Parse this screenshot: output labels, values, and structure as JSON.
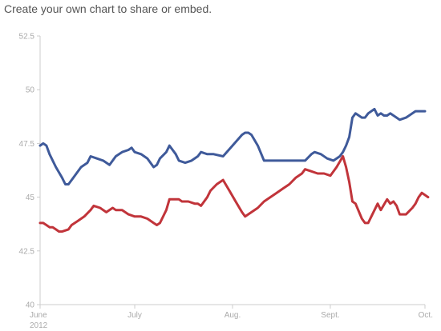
{
  "page": {
    "heading": "Create your own chart to share or embed."
  },
  "colors": {
    "series_1": "#3f5a9a",
    "series_2": "#c1343a",
    "axis": "#cccccc",
    "tick_text": "#aaaaaa"
  },
  "chart_data": {
    "type": "line",
    "title": "",
    "xlabel": "",
    "ylabel": "",
    "ylim": [
      40,
      52.5
    ],
    "xlim": [
      "2012-06-01",
      "2012-10-01"
    ],
    "yticks": [
      "52.5",
      "50",
      "47.5",
      "45",
      "42.5",
      "40"
    ],
    "xticks": [
      {
        "date": "2012-06-01",
        "label": "June",
        "sublabel": "2012"
      },
      {
        "date": "2012-07-01",
        "label": "July",
        "sublabel": ""
      },
      {
        "date": "2012-08-01",
        "label": "Aug.",
        "sublabel": ""
      },
      {
        "date": "2012-09-01",
        "label": "Sept.",
        "sublabel": ""
      },
      {
        "date": "2012-10-01",
        "label": "Oct.",
        "sublabel": ""
      }
    ],
    "grid": false,
    "legend": "none",
    "series": [
      {
        "color": "#3f5a9a",
        "points": [
          [
            "2012-06-01",
            47.4
          ],
          [
            "2012-06-02",
            47.5
          ],
          [
            "2012-06-03",
            47.4
          ],
          [
            "2012-06-04",
            47.0
          ],
          [
            "2012-06-06",
            46.4
          ],
          [
            "2012-06-08",
            45.9
          ],
          [
            "2012-06-09",
            45.6
          ],
          [
            "2012-06-10",
            45.6
          ],
          [
            "2012-06-12",
            46.0
          ],
          [
            "2012-06-14",
            46.4
          ],
          [
            "2012-06-16",
            46.6
          ],
          [
            "2012-06-17",
            46.9
          ],
          [
            "2012-06-19",
            46.8
          ],
          [
            "2012-06-21",
            46.7
          ],
          [
            "2012-06-23",
            46.5
          ],
          [
            "2012-06-25",
            46.9
          ],
          [
            "2012-06-27",
            47.1
          ],
          [
            "2012-06-29",
            47.2
          ],
          [
            "2012-06-30",
            47.3
          ],
          [
            "2012-07-01",
            47.1
          ],
          [
            "2012-07-03",
            47.0
          ],
          [
            "2012-07-05",
            46.8
          ],
          [
            "2012-07-07",
            46.4
          ],
          [
            "2012-07-08",
            46.5
          ],
          [
            "2012-07-09",
            46.8
          ],
          [
            "2012-07-11",
            47.1
          ],
          [
            "2012-07-12",
            47.4
          ],
          [
            "2012-07-14",
            47.0
          ],
          [
            "2012-07-15",
            46.7
          ],
          [
            "2012-07-17",
            46.6
          ],
          [
            "2012-07-19",
            46.7
          ],
          [
            "2012-07-21",
            46.9
          ],
          [
            "2012-07-22",
            47.1
          ],
          [
            "2012-07-24",
            47.0
          ],
          [
            "2012-07-26",
            47.0
          ],
          [
            "2012-07-29",
            46.9
          ],
          [
            "2012-08-01",
            47.4
          ],
          [
            "2012-08-04",
            47.9
          ],
          [
            "2012-08-05",
            48.0
          ],
          [
            "2012-08-06",
            48.0
          ],
          [
            "2012-08-07",
            47.9
          ],
          [
            "2012-08-09",
            47.4
          ],
          [
            "2012-08-11",
            46.7
          ],
          [
            "2012-08-15",
            46.7
          ],
          [
            "2012-08-20",
            46.7
          ],
          [
            "2012-08-24",
            46.7
          ],
          [
            "2012-08-26",
            47.0
          ],
          [
            "2012-08-27",
            47.1
          ],
          [
            "2012-08-29",
            47.0
          ],
          [
            "2012-08-31",
            46.8
          ],
          [
            "2012-09-02",
            46.7
          ],
          [
            "2012-09-04",
            46.9
          ],
          [
            "2012-09-05",
            47.1
          ],
          [
            "2012-09-06",
            47.4
          ],
          [
            "2012-09-07",
            47.8
          ],
          [
            "2012-09-08",
            48.7
          ],
          [
            "2012-09-09",
            48.9
          ],
          [
            "2012-09-11",
            48.7
          ],
          [
            "2012-09-12",
            48.7
          ],
          [
            "2012-09-13",
            48.9
          ],
          [
            "2012-09-15",
            49.1
          ],
          [
            "2012-09-16",
            48.8
          ],
          [
            "2012-09-17",
            48.9
          ],
          [
            "2012-09-18",
            48.8
          ],
          [
            "2012-09-19",
            48.8
          ],
          [
            "2012-09-20",
            48.9
          ],
          [
            "2012-09-22",
            48.7
          ],
          [
            "2012-09-23",
            48.6
          ],
          [
            "2012-09-25",
            48.7
          ],
          [
            "2012-09-27",
            48.9
          ],
          [
            "2012-09-28",
            49.0
          ],
          [
            "2012-10-01",
            49.0
          ]
        ]
      },
      {
        "color": "#c1343a",
        "points": [
          [
            "2012-06-01",
            43.8
          ],
          [
            "2012-06-02",
            43.8
          ],
          [
            "2012-06-03",
            43.7
          ],
          [
            "2012-06-04",
            43.6
          ],
          [
            "2012-06-05",
            43.6
          ],
          [
            "2012-06-06",
            43.5
          ],
          [
            "2012-06-07",
            43.4
          ],
          [
            "2012-06-08",
            43.4
          ],
          [
            "2012-06-10",
            43.5
          ],
          [
            "2012-06-11",
            43.7
          ],
          [
            "2012-06-13",
            43.9
          ],
          [
            "2012-06-15",
            44.1
          ],
          [
            "2012-06-17",
            44.4
          ],
          [
            "2012-06-18",
            44.6
          ],
          [
            "2012-06-20",
            44.5
          ],
          [
            "2012-06-22",
            44.3
          ],
          [
            "2012-06-24",
            44.5
          ],
          [
            "2012-06-25",
            44.4
          ],
          [
            "2012-06-27",
            44.4
          ],
          [
            "2012-06-29",
            44.2
          ],
          [
            "2012-07-01",
            44.1
          ],
          [
            "2012-07-03",
            44.1
          ],
          [
            "2012-07-05",
            44.0
          ],
          [
            "2012-07-07",
            43.8
          ],
          [
            "2012-07-08",
            43.7
          ],
          [
            "2012-07-09",
            43.8
          ],
          [
            "2012-07-11",
            44.4
          ],
          [
            "2012-07-12",
            44.9
          ],
          [
            "2012-07-14",
            44.9
          ],
          [
            "2012-07-15",
            44.9
          ],
          [
            "2012-07-16",
            44.8
          ],
          [
            "2012-07-18",
            44.8
          ],
          [
            "2012-07-20",
            44.7
          ],
          [
            "2012-07-21",
            44.7
          ],
          [
            "2012-07-22",
            44.6
          ],
          [
            "2012-07-24",
            45.0
          ],
          [
            "2012-07-25",
            45.3
          ],
          [
            "2012-07-27",
            45.6
          ],
          [
            "2012-07-29",
            45.8
          ],
          [
            "2012-07-31",
            45.3
          ],
          [
            "2012-08-02",
            44.8
          ],
          [
            "2012-08-04",
            44.3
          ],
          [
            "2012-08-05",
            44.1
          ],
          [
            "2012-08-07",
            44.3
          ],
          [
            "2012-08-09",
            44.5
          ],
          [
            "2012-08-11",
            44.8
          ],
          [
            "2012-08-13",
            45.0
          ],
          [
            "2012-08-15",
            45.2
          ],
          [
            "2012-08-17",
            45.4
          ],
          [
            "2012-08-19",
            45.6
          ],
          [
            "2012-08-21",
            45.9
          ],
          [
            "2012-08-23",
            46.1
          ],
          [
            "2012-08-24",
            46.3
          ],
          [
            "2012-08-26",
            46.2
          ],
          [
            "2012-08-28",
            46.1
          ],
          [
            "2012-08-30",
            46.1
          ],
          [
            "2012-09-01",
            46.0
          ],
          [
            "2012-09-03",
            46.4
          ],
          [
            "2012-09-05",
            46.9
          ],
          [
            "2012-09-06",
            46.4
          ],
          [
            "2012-09-07",
            45.7
          ],
          [
            "2012-09-08",
            44.8
          ],
          [
            "2012-09-09",
            44.7
          ],
          [
            "2012-09-11",
            44.0
          ],
          [
            "2012-09-12",
            43.8
          ],
          [
            "2012-09-13",
            43.8
          ],
          [
            "2012-09-14",
            44.1
          ],
          [
            "2012-09-16",
            44.7
          ],
          [
            "2012-09-17",
            44.4
          ],
          [
            "2012-09-19",
            44.9
          ],
          [
            "2012-09-20",
            44.7
          ],
          [
            "2012-09-21",
            44.8
          ],
          [
            "2012-09-22",
            44.6
          ],
          [
            "2012-09-23",
            44.2
          ],
          [
            "2012-09-25",
            44.2
          ],
          [
            "2012-09-27",
            44.5
          ],
          [
            "2012-09-28",
            44.7
          ],
          [
            "2012-09-29",
            45.0
          ],
          [
            "2012-09-30",
            45.2
          ],
          [
            "2012-10-02",
            45.0
          ]
        ]
      }
    ]
  }
}
